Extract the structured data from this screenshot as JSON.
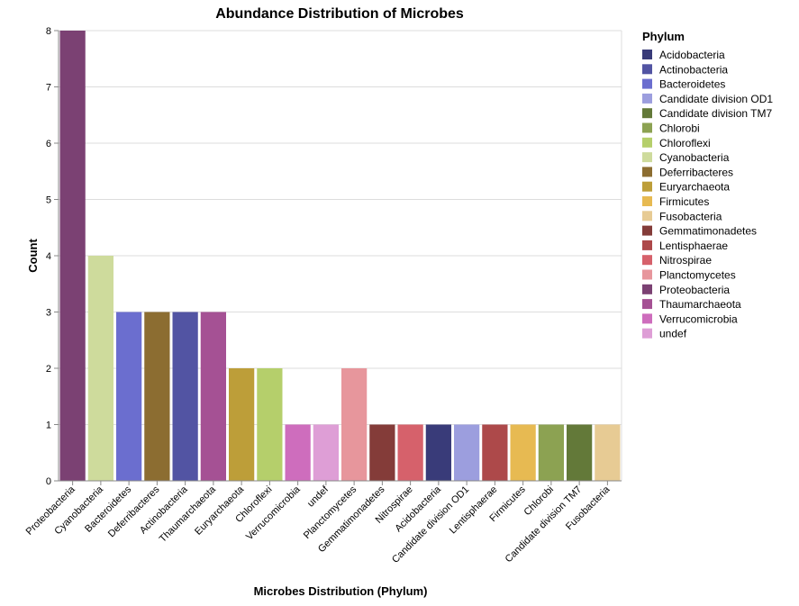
{
  "chart_data": {
    "type": "bar",
    "title": "Abundance Distribution of Microbes",
    "xlabel": "Microbes Distribution (Phylum)",
    "ylabel": "Count",
    "ylim": [
      0,
      8
    ],
    "yticks": [
      0,
      1,
      2,
      3,
      4,
      5,
      6,
      7,
      8
    ],
    "grid": true,
    "legend_title": "Phylum",
    "legend_position": "right",
    "categories": [
      "Proteobacteria",
      "Cyanobacteria",
      "Bacteroidetes",
      "Deferribacteres",
      "Actinobacteria",
      "Thaumarchaeota",
      "Euryarchaeota",
      "Chloroflexi",
      "Verrucomicrobia",
      "undef",
      "Planctomycetes",
      "Gemmatimonadetes",
      "Nitrospirae",
      "Acidobacteria",
      "Candidate division OD1",
      "Lentisphaerae",
      "Firmicutes",
      "Chlorobi",
      "Candidate division TM7",
      "Fusobacteria"
    ],
    "values": [
      8,
      4,
      3,
      3,
      3,
      3,
      2,
      2,
      1,
      1,
      2,
      1,
      1,
      1,
      1,
      1,
      1,
      1,
      1,
      1
    ],
    "legend": [
      {
        "name": "Acidobacteria",
        "color": "#393b79"
      },
      {
        "name": "Actinobacteria",
        "color": "#5254a3"
      },
      {
        "name": "Bacteroidetes",
        "color": "#6b6ecf"
      },
      {
        "name": "Candidate division OD1",
        "color": "#9c9ede"
      },
      {
        "name": "Candidate division TM7",
        "color": "#637939"
      },
      {
        "name": "Chlorobi",
        "color": "#8ca252"
      },
      {
        "name": "Chloroflexi",
        "color": "#b5cf6b"
      },
      {
        "name": "Cyanobacteria",
        "color": "#cedb9c"
      },
      {
        "name": "Deferribacteres",
        "color": "#8c6d31"
      },
      {
        "name": "Euryarchaeota",
        "color": "#bd9e39"
      },
      {
        "name": "Firmicutes",
        "color": "#e7ba52"
      },
      {
        "name": "Fusobacteria",
        "color": "#e7cb94"
      },
      {
        "name": "Gemmatimonadetes",
        "color": "#843c39"
      },
      {
        "name": "Lentisphaerae",
        "color": "#ad494a"
      },
      {
        "name": "Nitrospirae",
        "color": "#d6616b"
      },
      {
        "name": "Planctomycetes",
        "color": "#e7969c"
      },
      {
        "name": "Proteobacteria",
        "color": "#7b4173"
      },
      {
        "name": "Thaumarchaeota",
        "color": "#a55194"
      },
      {
        "name": "Verrucomicrobia",
        "color": "#ce6dbd"
      },
      {
        "name": "undef",
        "color": "#de9ed6"
      }
    ]
  }
}
